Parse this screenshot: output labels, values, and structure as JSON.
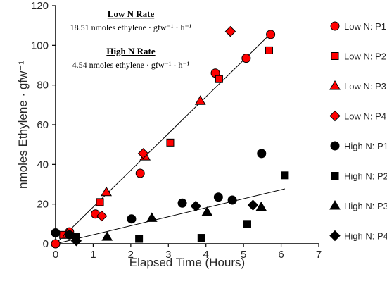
{
  "chart_data": {
    "type": "scatter",
    "xlabel": "Elapsed Time (Hours)",
    "ylabel": "nmoles Ethylene · gfw⁻¹",
    "xlim": [
      0,
      7
    ],
    "ylim": [
      0,
      120
    ],
    "xticks": [
      0,
      1,
      2,
      3,
      4,
      5,
      6,
      7
    ],
    "yticks": [
      0,
      20,
      40,
      60,
      80,
      100,
      120
    ],
    "grid": false,
    "legend_position": "right",
    "annotations": [
      {
        "heading": "Low N Rate",
        "text": "18.51 nmoles ethylene · gfw⁻¹ · h⁻¹"
      },
      {
        "heading": "High N Rate",
        "text": "4.54 nmoles ethylene · gfw⁻¹ · h⁻¹"
      }
    ],
    "trendlines": [
      {
        "group": "Low N",
        "slope": 18.51,
        "intercept": 0,
        "x_range": [
          0.02,
          5.72
        ]
      },
      {
        "group": "High N",
        "slope": 4.54,
        "intercept": 0,
        "x_range": [
          0.02,
          6.1
        ]
      }
    ],
    "series": [
      {
        "name": "Low N: P1",
        "marker": "circle",
        "fill": "#ff0000",
        "points": [
          [
            0,
            0
          ],
          [
            0.37,
            6
          ],
          [
            1.06,
            15
          ],
          [
            2.25,
            35.5
          ],
          [
            4.25,
            86
          ],
          [
            5.07,
            93.5
          ],
          [
            5.72,
            105.5
          ]
        ]
      },
      {
        "name": "Low N: P2",
        "marker": "square",
        "fill": "#ff0000",
        "points": [
          [
            0.2,
            4.5
          ],
          [
            1.18,
            21
          ],
          [
            3.05,
            51
          ],
          [
            4.35,
            83
          ],
          [
            5.68,
            97.5
          ]
        ]
      },
      {
        "name": "Low N: P3",
        "marker": "triangle",
        "fill": "#ff0000",
        "points": [
          [
            0.32,
            5
          ],
          [
            1.35,
            26
          ],
          [
            2.38,
            44
          ],
          [
            3.85,
            72
          ]
        ]
      },
      {
        "name": "Low N: P4",
        "marker": "diamond",
        "fill": "#ff0000",
        "points": [
          [
            1.23,
            14
          ],
          [
            2.33,
            45.5
          ],
          [
            4.65,
            107
          ]
        ]
      },
      {
        "name": "High N: P1",
        "marker": "circle",
        "fill": "#000000",
        "points": [
          [
            0,
            5.5
          ],
          [
            0.37,
            4.5
          ],
          [
            2.02,
            12.5
          ],
          [
            3.37,
            20.5
          ],
          [
            4.33,
            23.5
          ],
          [
            4.7,
            22
          ],
          [
            5.48,
            45.5
          ]
        ]
      },
      {
        "name": "High N: P2",
        "marker": "square",
        "fill": "#000000",
        "points": [
          [
            0.55,
            3.5
          ],
          [
            2.22,
            2.5
          ],
          [
            3.88,
            3
          ],
          [
            5.1,
            10
          ],
          [
            6.1,
            34.5
          ]
        ]
      },
      {
        "name": "High N: P3",
        "marker": "triangle",
        "fill": "#000000",
        "points": [
          [
            1.37,
            3.5
          ],
          [
            2.56,
            13
          ],
          [
            4.03,
            16
          ],
          [
            5.47,
            18.5
          ]
        ]
      },
      {
        "name": "High N: P4",
        "marker": "diamond",
        "fill": "#000000",
        "points": [
          [
            0.55,
            1.5
          ],
          [
            3.73,
            19
          ],
          [
            5.25,
            19.5
          ]
        ]
      }
    ]
  }
}
